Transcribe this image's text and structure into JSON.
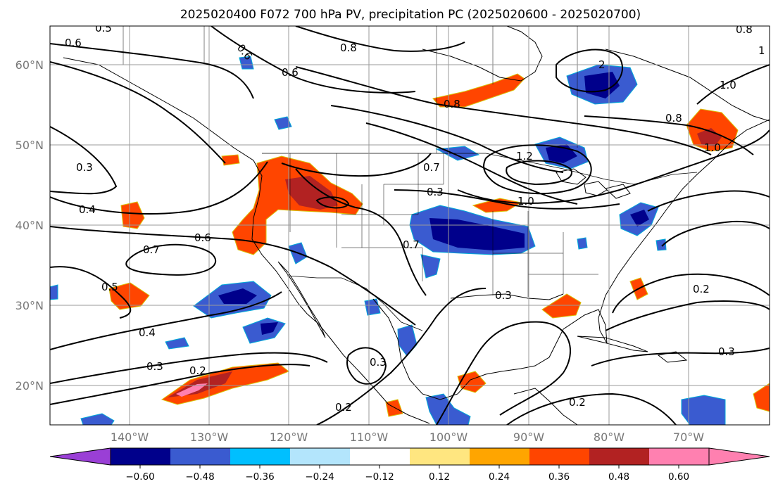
{
  "title": "2025020400 F072 700 hPa PV, precipitation PC (2025020600 - 2025020700)",
  "map": {
    "lat_ticks": [
      "60°N",
      "50°N",
      "40°N",
      "30°N",
      "20°N"
    ],
    "lon_ticks": [
      "140°W",
      "130°W",
      "120°W",
      "110°W",
      "100°W",
      "90°W",
      "80°W",
      "70°W"
    ],
    "contour_labels": [
      "0.6",
      "0.5",
      "0.6",
      "0.6",
      "0.8",
      "2",
      "1",
      "1.0",
      "0.8",
      "1.0",
      "0.8",
      "1.2",
      "0.7",
      "0.3",
      "1.0",
      "0.3",
      "0.4",
      "0.7",
      "0.6",
      "0.5",
      "0.4",
      "0.3",
      "0.2",
      "0.3",
      "0.2",
      "0.7",
      "0.3",
      "0.2",
      "0.2",
      "0.3",
      "0.8"
    ]
  },
  "colorbar": {
    "ticks": [
      "−0.60",
      "−0.48",
      "−0.36",
      "−0.24",
      "−0.12",
      "0.12",
      "0.24",
      "0.36",
      "0.48",
      "0.60"
    ],
    "colors": {
      "under": "#9a3fd6",
      "bins": [
        "#00008b",
        "#3a5bd0",
        "#00bfff",
        "#b3e5fc",
        "#ffffff",
        "#ffe680",
        "#ffa500",
        "#ff4500",
        "#b22222",
        "#ff80b0"
      ],
      "over": "#ff80b0"
    }
  }
}
